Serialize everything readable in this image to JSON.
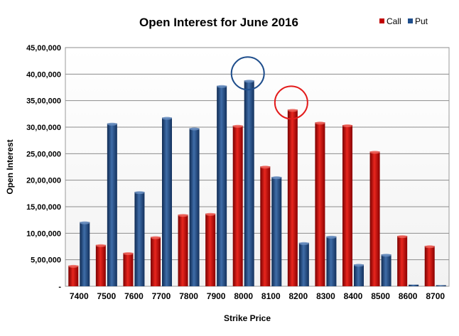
{
  "chart_data": {
    "type": "bar",
    "title": "Open Interest for June 2016",
    "xlabel": "Strike Price",
    "ylabel": "Open Interest",
    "ylim": [
      0,
      4500000
    ],
    "y_ticks": [
      0,
      500000,
      1000000,
      1500000,
      2000000,
      2500000,
      3000000,
      3500000,
      4000000,
      4500000
    ],
    "y_tick_labels": [
      "-",
      "5,00,000",
      "10,00,000",
      "15,00,000",
      "20,00,000",
      "25,00,000",
      "30,00,000",
      "35,00,000",
      "40,00,000",
      "45,00,000"
    ],
    "grid": true,
    "legend_position": "top-right",
    "categories": [
      "7400",
      "7500",
      "7600",
      "7700",
      "7800",
      "7900",
      "8000",
      "8100",
      "8200",
      "8300",
      "8400",
      "8500",
      "8600",
      "8700"
    ],
    "series": [
      {
        "name": "Call",
        "color": "#c00000",
        "values": [
          390000,
          780000,
          630000,
          930000,
          1350000,
          1370000,
          3030000,
          2260000,
          3330000,
          3090000,
          3040000,
          2540000,
          950000,
          760000
        ]
      },
      {
        "name": "Put",
        "color": "#1f4e8c",
        "values": [
          1210000,
          3070000,
          1780000,
          3180000,
          2980000,
          3780000,
          3880000,
          2060000,
          820000,
          940000,
          410000,
          600000,
          30000,
          20000
        ]
      }
    ],
    "annotations": [
      {
        "type": "circle",
        "category": "8000",
        "series": "Put",
        "color": "#1f4e8c"
      },
      {
        "type": "circle",
        "category": "8200",
        "series": "Call",
        "color": "#e31b1b"
      }
    ]
  }
}
